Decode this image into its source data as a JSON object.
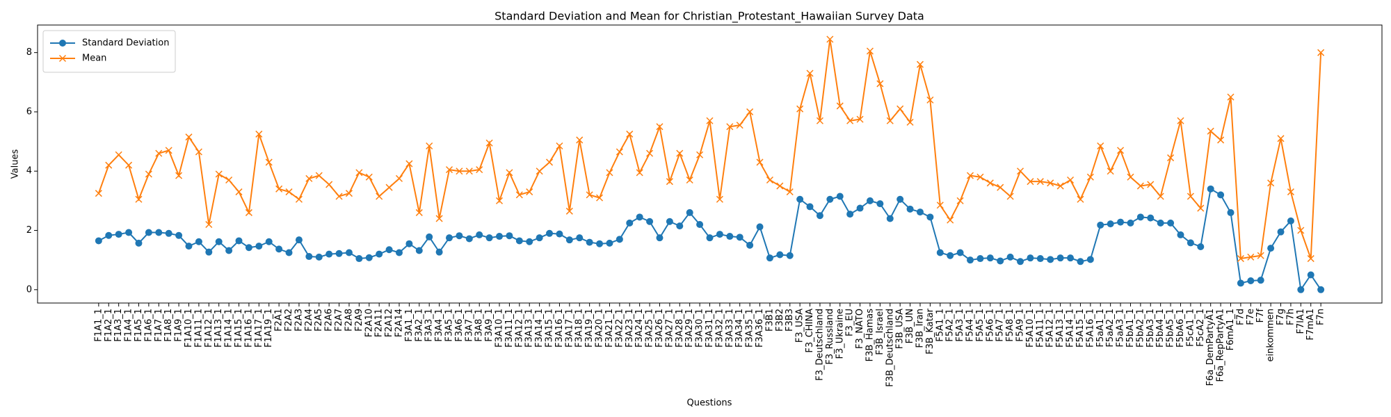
{
  "chart_data": {
    "type": "line",
    "title": "Standard Deviation and Mean for Christian_Protestant_Hawaiian Survey Data",
    "xlabel": "Questions",
    "ylabel": "Values",
    "categories": [
      "F1A1_1",
      "F1A2_1",
      "F1A3_1",
      "F1A4_1",
      "F1A5_1",
      "F1A6_1",
      "F1A7_1",
      "F1A8_1",
      "F1A9_1",
      "F1A10_1",
      "F1A11_1",
      "F1A12_1",
      "F1A13_1",
      "F1A14_1",
      "F1A15_1",
      "F1A16_1",
      "F1A17_1",
      "F1A19_1",
      "F2A1",
      "F2A2",
      "F2A3",
      "F2A4",
      "F2A5",
      "F2A6",
      "F2A7",
      "F2A8",
      "F2A9",
      "F2A10",
      "F2A11",
      "F2A12",
      "F2A14",
      "F3A1_1",
      "F3A2_1",
      "F3A3_1",
      "F3A4_1",
      "F3A5_1",
      "F3A6_1",
      "F3A7_1",
      "F3A8_1",
      "F3A9_1",
      "F3A10_1",
      "F3A11_1",
      "F3A12_1",
      "F3A13_1",
      "F3A14_1",
      "F3A15_1",
      "F3A16_1",
      "F3A17_1",
      "F3A18_1",
      "F3A19_1",
      "F3A20_1",
      "F3A21_1",
      "F3A22_1",
      "F3A23_1",
      "F3A24_1",
      "F3A25_1",
      "F3A26_1",
      "F3A27_1",
      "F3A28_1",
      "F3A29_1",
      "F3A30_1",
      "F3A31_1",
      "F3A32_1",
      "F3A33_1",
      "F3A34_1",
      "F3A35_1",
      "F3A36_1",
      "F3B1",
      "F3B2",
      "F3B3",
      "F3_USA",
      "F3_CHINA",
      "F3_Deutschland",
      "F3_Russland",
      "F3_Ukraine",
      "F3_EU",
      "F3_NATO",
      "F3B_Hamas",
      "F3B_Israel",
      "F3B_Deutschland",
      "F3B_USA",
      "F3B_UN",
      "F3B_Iran",
      "F3B_Katar",
      "F5A1_1",
      "F5A2_1",
      "F5A3_1",
      "F5A4_1",
      "F5A5_1",
      "F5A6_1",
      "F5A7_1",
      "F5A8_1",
      "F5A9_1",
      "F5A10_1",
      "F5A11_1",
      "F5A12_1",
      "F5A13_1",
      "F5A14_1",
      "F5A15_1",
      "F5A16_1",
      "F5aA1_1",
      "F5aA2_1",
      "F5aA3_1",
      "F5bA1_1",
      "F5bA2_1",
      "F5bA3_1",
      "F5bA4_1",
      "F5bA5_1",
      "F5bA6_1",
      "F5cA1_1",
      "F5cA2_1",
      "F6a_DemPartyA1",
      "F6a_RepPartyA1",
      "F6mA1_1",
      "F7d",
      "F7e",
      "F7f",
      "einkommen",
      "F7g",
      "F7h",
      "F7lA1",
      "F7mA1",
      "F7n"
    ],
    "series": [
      {
        "name": "Standard Deviation",
        "color": "#1f77b4",
        "marker": "o",
        "values": [
          1.65,
          1.83,
          1.87,
          1.93,
          1.57,
          1.93,
          1.93,
          1.9,
          1.83,
          1.47,
          1.62,
          1.27,
          1.62,
          1.32,
          1.65,
          1.42,
          1.47,
          1.62,
          1.37,
          1.25,
          1.68,
          1.12,
          1.1,
          1.2,
          1.22,
          1.25,
          1.05,
          1.08,
          1.2,
          1.35,
          1.25,
          1.55,
          1.32,
          1.78,
          1.27,
          1.75,
          1.82,
          1.72,
          1.85,
          1.75,
          1.8,
          1.82,
          1.65,
          1.62,
          1.75,
          1.9,
          1.88,
          1.68,
          1.75,
          1.6,
          1.55,
          1.57,
          1.7,
          2.25,
          2.45,
          2.3,
          1.75,
          2.3,
          2.15,
          2.6,
          2.2,
          1.75,
          1.87,
          1.8,
          1.77,
          1.5,
          2.12,
          1.07,
          1.18,
          1.15,
          3.05,
          2.8,
          2.5,
          3.05,
          3.15,
          2.55,
          2.75,
          3.0,
          2.9,
          2.4,
          3.05,
          2.72,
          2.62,
          2.45,
          1.25,
          1.15,
          1.25,
          1.0,
          1.05,
          1.07,
          0.97,
          1.1,
          0.95,
          1.07,
          1.05,
          1.02,
          1.07,
          1.07,
          0.95,
          1.02,
          2.18,
          2.22,
          2.28,
          2.25,
          2.45,
          2.42,
          2.25,
          2.25,
          1.85,
          1.58,
          1.45,
          3.4,
          3.2,
          2.6,
          0.22,
          0.3,
          0.32,
          1.4,
          1.95,
          2.32,
          0.0,
          0.5,
          0.0
        ]
      },
      {
        "name": "Mean",
        "color": "#ff7f0e",
        "marker": "x",
        "values": [
          3.25,
          4.2,
          4.55,
          4.2,
          3.05,
          3.9,
          4.6,
          4.7,
          3.85,
          5.15,
          4.65,
          2.2,
          3.9,
          3.7,
          3.3,
          2.6,
          5.25,
          4.3,
          3.4,
          3.3,
          3.05,
          3.75,
          3.85,
          3.55,
          3.15,
          3.25,
          3.95,
          3.8,
          3.15,
          3.45,
          3.75,
          4.25,
          2.6,
          4.85,
          2.4,
          4.05,
          4.0,
          4.0,
          4.05,
          4.95,
          3.0,
          3.95,
          3.2,
          3.3,
          4.0,
          4.3,
          4.85,
          2.65,
          5.05,
          3.2,
          3.1,
          3.95,
          4.65,
          5.25,
          3.95,
          4.6,
          5.5,
          3.65,
          4.6,
          3.7,
          4.55,
          5.7,
          3.05,
          5.5,
          5.55,
          6.0,
          4.3,
          3.7,
          3.5,
          3.3,
          6.1,
          7.3,
          5.7,
          8.45,
          6.2,
          5.7,
          5.75,
          8.05,
          6.95,
          5.7,
          6.1,
          5.65,
          7.6,
          6.4,
          2.85,
          2.35,
          3.0,
          3.85,
          3.8,
          3.6,
          3.45,
          3.15,
          4.0,
          3.65,
          3.65,
          3.6,
          3.5,
          3.7,
          3.05,
          3.8,
          4.85,
          4.0,
          4.7,
          3.8,
          3.5,
          3.55,
          3.15,
          4.45,
          5.7,
          3.15,
          2.75,
          5.35,
          5.05,
          6.5,
          1.05,
          1.1,
          1.15,
          3.6,
          5.1,
          3.3,
          2.0,
          1.05,
          8.0
        ]
      }
    ],
    "ylim": [
      -0.45,
      8.93
    ],
    "yticks": [
      0,
      2,
      4,
      6,
      8
    ],
    "grid": false,
    "legend": "upper left"
  }
}
